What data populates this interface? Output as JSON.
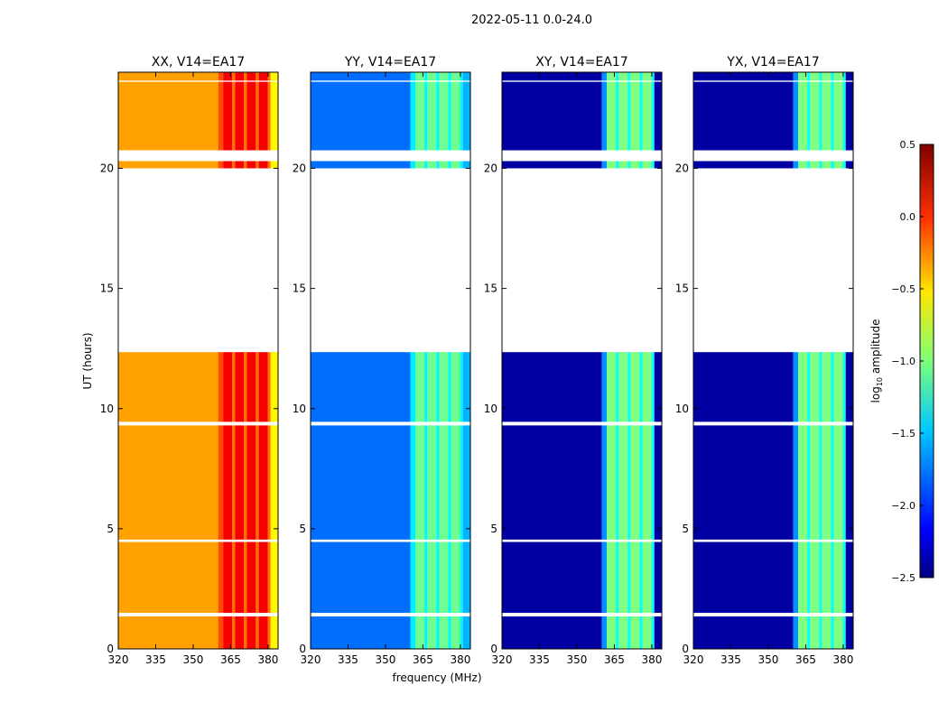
{
  "chart_data": {
    "type": "heatmap",
    "title": "2022-05-11 0.0-24.0",
    "xlabel": "frequency (MHz)",
    "ylabel": "UT (hours)",
    "xlim": [
      320,
      384
    ],
    "ylim": [
      0,
      24
    ],
    "xticks": [
      "320",
      "335",
      "350",
      "365",
      "380"
    ],
    "yticks": [
      "0",
      "5",
      "10",
      "15",
      "20"
    ],
    "colorbar": {
      "label": "log10 amplitude",
      "range": [
        -2.5,
        0.5
      ],
      "ticks": [
        "0.5",
        "0.0",
        "−0.5",
        "−1.0",
        "−1.5",
        "−2.0",
        "−2.5"
      ]
    },
    "observed_intervals_hours": [
      [
        0,
        1.35
      ],
      [
        1.5,
        4.45
      ],
      [
        4.55,
        9.3
      ],
      [
        9.45,
        12.35
      ],
      [
        20.0,
        20.3
      ],
      [
        20.75,
        23.6
      ],
      [
        23.65,
        24
      ]
    ],
    "panels": [
      {
        "title": "XX, V14=EA17",
        "base_level": -0.35,
        "band_level": 0.15,
        "edge_level": -0.6
      },
      {
        "title": "YY, V14=EA17",
        "base_level": -1.8,
        "band_level": -1.05,
        "edge_level": -1.6
      },
      {
        "title": "XY, V14=EA17",
        "base_level": -2.4,
        "band_level": -1.0,
        "edge_level": -2.4
      },
      {
        "title": "YX, V14=EA17",
        "base_level": -2.4,
        "band_level": -1.0,
        "edge_level": -2.4
      }
    ],
    "band_mhz": [
      362,
      381
    ]
  }
}
